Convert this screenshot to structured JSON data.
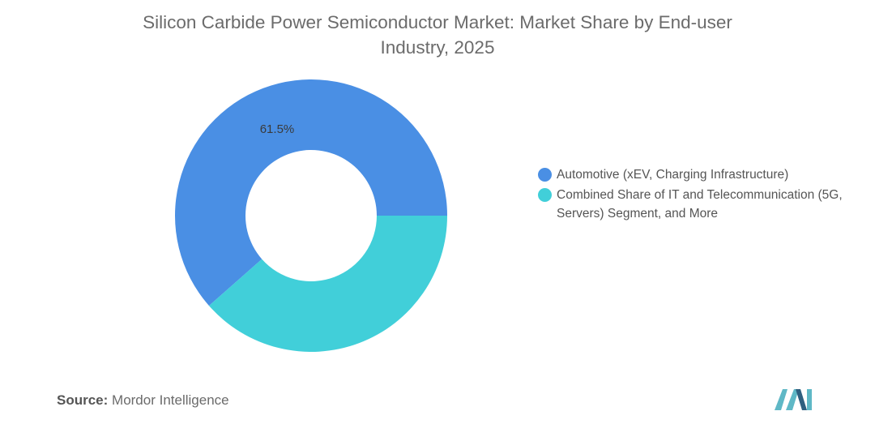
{
  "chart_data": {
    "type": "pie",
    "variant": "donut",
    "title": "Silicon Carbide Power Semiconductor Market: Market Share by End-user Industry, 2025",
    "slices": [
      {
        "label": "Automotive (xEV, Charging Infrastructure)",
        "value": 61.5,
        "display": "61.5%",
        "color": "#4a8fe4"
      },
      {
        "label": "Combined Share of IT and Telecommunication (5G, Servers) Segment, and More",
        "value": 38.5,
        "display": "",
        "color": "#41cfd9"
      }
    ],
    "legend_position": "right"
  },
  "source": {
    "label": "Source:",
    "text": "Mordor Intelligence"
  },
  "logo": {
    "name": "mordor-intelligence-logo",
    "colors": [
      "#5fb8c6",
      "#2f5f7f"
    ]
  }
}
